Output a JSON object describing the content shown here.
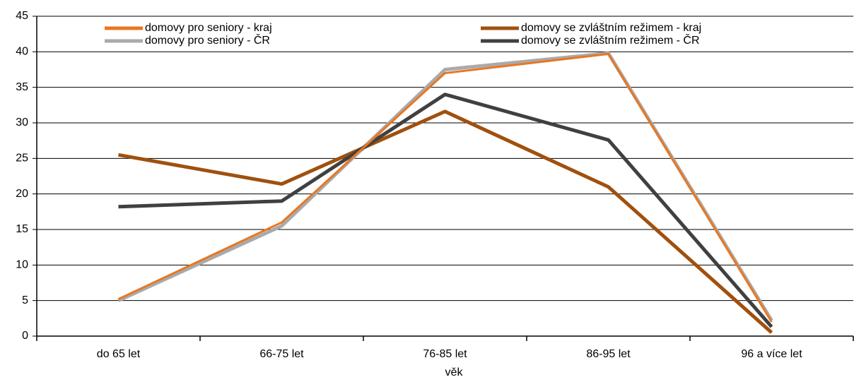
{
  "chart_data": {
    "type": "line",
    "xlabel": "věk",
    "categories": [
      "do 65 let",
      "66-75 let",
      "76-85 let",
      "86-95 let",
      "96 a více let"
    ],
    "series": [
      {
        "name": "domovy pro seniory - kraj",
        "color": "#e87722",
        "values": [
          5.2,
          16,
          37,
          39.7,
          2
        ]
      },
      {
        "name": "domovy se zvláštním režimem - kraj",
        "color": "#a0500e",
        "values": [
          25.5,
          21.4,
          31.6,
          21,
          0.5
        ]
      },
      {
        "name": "domovy pro seniory - ČR",
        "color": "#aaaaaa",
        "values": [
          5,
          15.5,
          37.5,
          39.8,
          2.2
        ]
      },
      {
        "name": "domovy se zvláštním režimem - ČR",
        "color": "#404040",
        "values": [
          18.2,
          19,
          34,
          27.6,
          1.3
        ]
      }
    ],
    "ylim": [
      0,
      45
    ],
    "yticks": [
      0,
      5,
      10,
      15,
      20,
      25,
      30,
      35,
      40,
      45
    ],
    "grid": true
  }
}
